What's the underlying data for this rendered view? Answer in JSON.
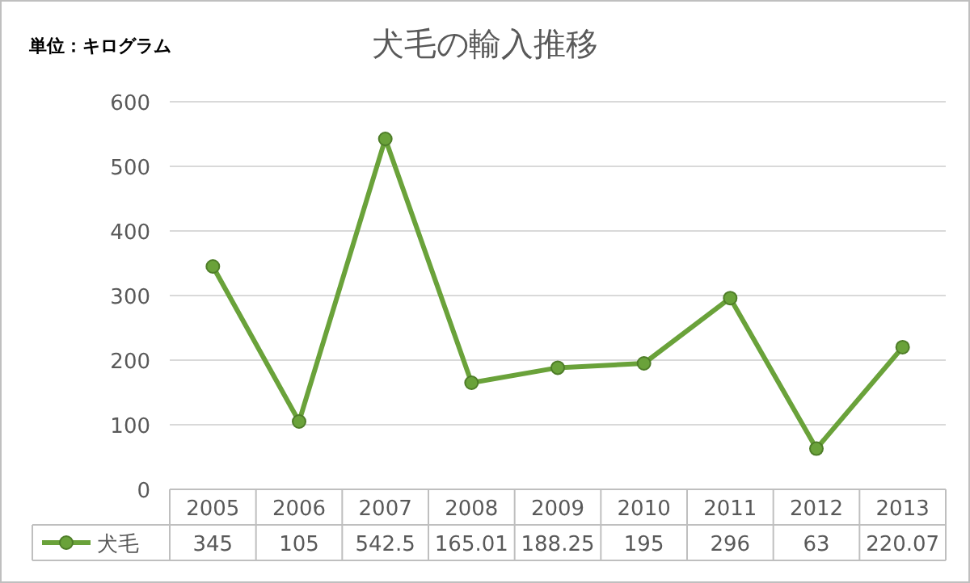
{
  "chart_data": {
    "type": "line",
    "title": "犬毛の輸入推移",
    "annotations": [
      "単位：キログラム"
    ],
    "categories": [
      "2005",
      "2006",
      "2007",
      "2008",
      "2009",
      "2010",
      "2011",
      "2012",
      "2013"
    ],
    "series": [
      {
        "name": "犬毛",
        "color": "#6aa23a",
        "values": [
          345,
          105,
          542.5,
          165.01,
          188.25,
          195,
          296,
          63,
          220.07
        ]
      }
    ],
    "ylim": [
      0,
      600
    ],
    "yticks": [
      0,
      100,
      200,
      300,
      400,
      500,
      600
    ],
    "grid": "y",
    "data_labels": true,
    "legend": "bottom",
    "marker": "circle",
    "line_style": "solid"
  }
}
